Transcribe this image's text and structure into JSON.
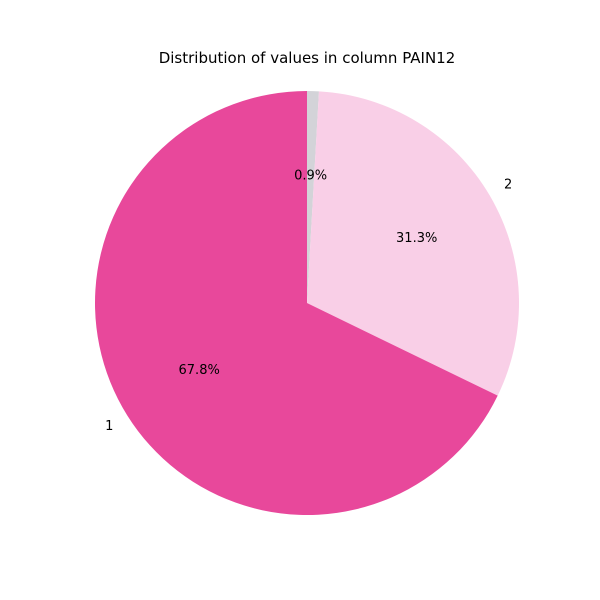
{
  "chart_data": {
    "type": "pie",
    "title": "Distribution of values in column PAIN12",
    "slices": [
      {
        "label": "",
        "value": 0.9,
        "pct_label": "0.9%",
        "color": "#d3d3d8"
      },
      {
        "label": "2",
        "value": 31.3,
        "pct_label": "31.3%",
        "color": "#f9cfe7"
      },
      {
        "label": "1",
        "value": 67.8,
        "pct_label": "67.8%",
        "color": "#e8489b"
      }
    ],
    "start_angle_deg": 90,
    "direction": "clockwise",
    "legend": "none"
  }
}
